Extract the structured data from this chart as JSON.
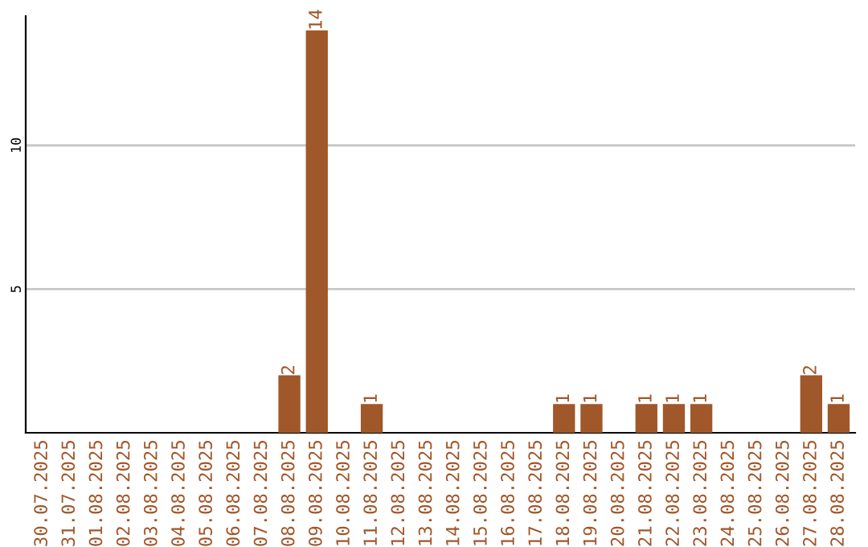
{
  "chart_data": {
    "type": "bar",
    "categories": [
      "30.07.2025",
      "31.07.2025",
      "01.08.2025",
      "02.08.2025",
      "03.08.2025",
      "04.08.2025",
      "05.08.2025",
      "06.08.2025",
      "07.08.2025",
      "08.08.2025",
      "09.08.2025",
      "10.08.2025",
      "11.08.2025",
      "12.08.2025",
      "13.08.2025",
      "14.08.2025",
      "15.08.2025",
      "16.08.2025",
      "17.08.2025",
      "18.08.2025",
      "19.08.2025",
      "20.08.2025",
      "21.08.2025",
      "22.08.2025",
      "23.08.2025",
      "24.08.2025",
      "25.08.2025",
      "26.08.2025",
      "27.08.2025",
      "28.08.2025"
    ],
    "values": [
      0,
      0,
      0,
      0,
      0,
      0,
      0,
      0,
      0,
      2,
      14,
      0,
      1,
      0,
      0,
      0,
      0,
      0,
      0,
      1,
      1,
      0,
      1,
      1,
      1,
      0,
      0,
      0,
      2,
      1
    ],
    "value_labels": [
      null,
      null,
      null,
      null,
      null,
      null,
      null,
      null,
      null,
      "2",
      "14",
      null,
      "1",
      null,
      null,
      null,
      null,
      null,
      null,
      "1",
      "1",
      null,
      "1",
      "1",
      "1",
      null,
      null,
      null,
      "2",
      "1"
    ],
    "color": "#a0572a",
    "ylim": [
      0,
      14.5
    ],
    "yticks": [
      5,
      10
    ],
    "grid": "y"
  }
}
